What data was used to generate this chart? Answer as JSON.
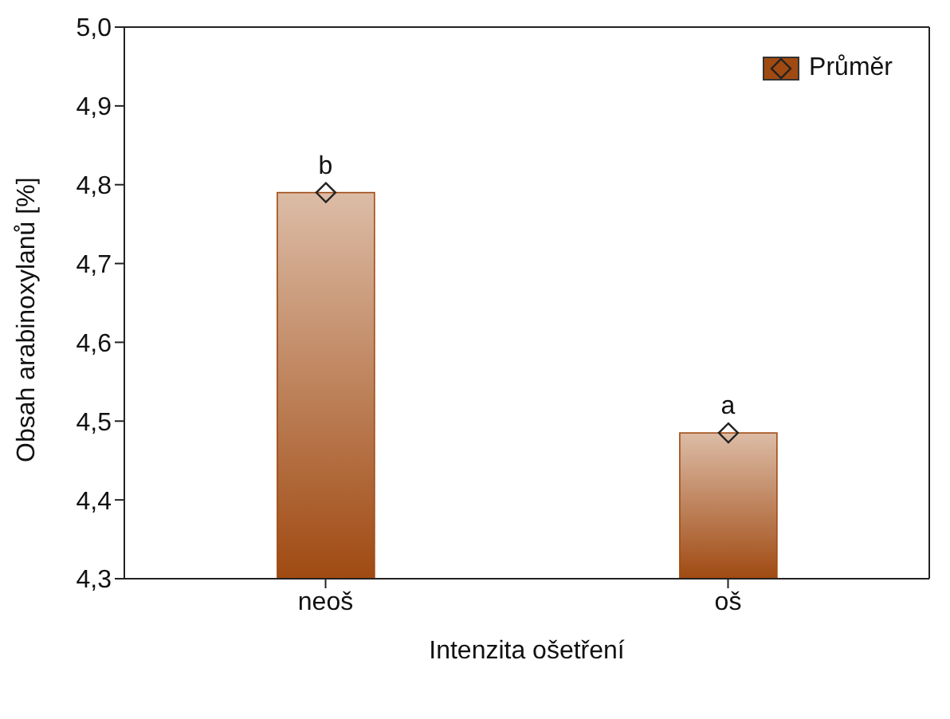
{
  "chart_data": {
    "type": "bar",
    "xlabel": "Intenzita ošetření",
    "ylabel": "Obsah arabinoxylanů [%]",
    "categories": [
      "neoš",
      "oš"
    ],
    "series": [
      {
        "name": "Průměr",
        "color": "#a04a12",
        "values": [
          4.79,
          4.485
        ]
      }
    ],
    "marker": "diamond",
    "legend": "top right",
    "grid": false,
    "ylim": [
      4.3,
      5.0
    ],
    "yticks": [
      {
        "value": 4.3,
        "label": "4,3"
      },
      {
        "value": 4.4,
        "label": "4,4"
      },
      {
        "value": 4.5,
        "label": "4,5"
      },
      {
        "value": 4.6,
        "label": "4,6"
      },
      {
        "value": 4.7,
        "label": "4,7"
      },
      {
        "value": 4.8,
        "label": "4,8"
      },
      {
        "value": 4.9,
        "label": "4,9"
      },
      {
        "value": 5.0,
        "label": "5,0"
      }
    ],
    "annotations": [
      {
        "text": "b",
        "x": "neoš",
        "y": 4.79
      },
      {
        "text": "a",
        "x": "oš",
        "y": 4.485
      }
    ]
  }
}
